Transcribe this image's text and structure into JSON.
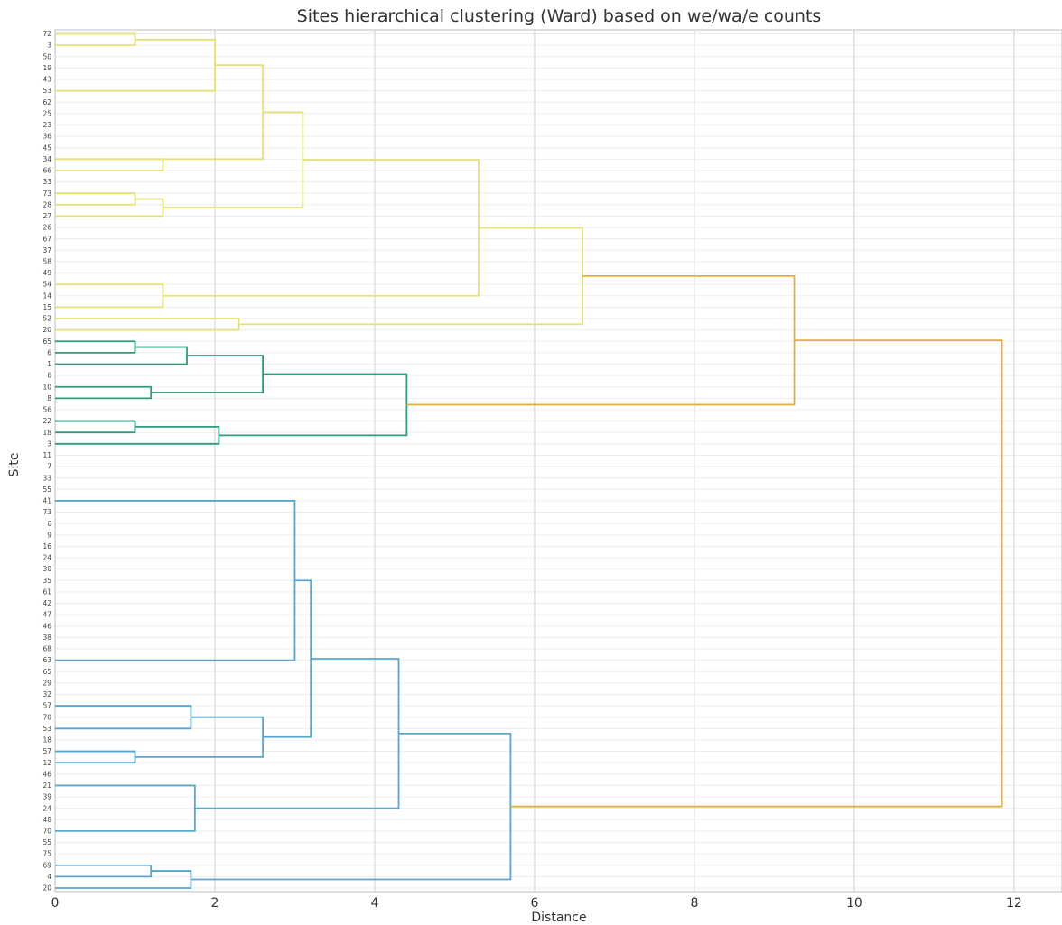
{
  "chart_data": {
    "type": "dendrogram",
    "title": "Sites hierarchical clustering (Ward) based on we/wa/e counts",
    "xlabel": "Distance",
    "ylabel": "Site",
    "xlim": [
      0,
      12.6
    ],
    "xticks": [
      "0",
      "2",
      "4",
      "6",
      "8",
      "10",
      "12"
    ],
    "orientation": "right",
    "grid": true,
    "colors": {
      "cluster_yellow": "#e6e07a",
      "cluster_green": "#2e9c7e",
      "cluster_blue": "#5aa6cf",
      "above_threshold": "#e0b13a",
      "grid": "#cfcfcf"
    },
    "leaves": [
      "72",
      "3",
      "50",
      "19",
      "43",
      "53",
      "62",
      "25",
      "23",
      "36",
      "45",
      "34",
      "66",
      "33",
      "73",
      "28",
      "27",
      "26",
      "67",
      "37",
      "58",
      "49",
      "54",
      "14",
      "15",
      "52",
      "20",
      "65",
      "6",
      "1",
      "6",
      "10",
      "8",
      "56",
      "22",
      "18",
      "3",
      "11",
      "7",
      "33",
      "55",
      "41",
      "73",
      "6",
      "9",
      "16",
      "24",
      "30",
      "35",
      "61",
      "42",
      "47",
      "46",
      "38",
      "68",
      "63",
      "65",
      "29",
      "32",
      "57",
      "70",
      "53",
      "18",
      "57",
      "12",
      "46",
      "21",
      "39",
      "24",
      "48",
      "70",
      "55",
      "75",
      "69",
      "4",
      "20"
    ],
    "links": [
      {
        "left": 0,
        "right": 1,
        "height": 1.0,
        "color": "cluster_yellow"
      },
      {
        "left": "c0",
        "right": 5,
        "height": 2.0,
        "color": "cluster_yellow"
      },
      {
        "left": "c1",
        "right": 11,
        "height": 2.6,
        "color": "cluster_yellow"
      },
      {
        "left": 11,
        "right": 12,
        "height": 1.35,
        "color": "cluster_yellow"
      },
      {
        "left": 14,
        "right": 15,
        "height": 1.0,
        "color": "cluster_yellow"
      },
      {
        "left": "c4",
        "right": 16,
        "height": 1.35,
        "color": "cluster_yellow"
      },
      {
        "left": "c2",
        "right": "c5",
        "height": 3.1,
        "color": "cluster_yellow"
      },
      {
        "left": 22,
        "right": 24,
        "height": 1.35,
        "color": "cluster_yellow"
      },
      {
        "left": "c6",
        "right": "c7",
        "height": 5.3,
        "color": "cluster_yellow"
      },
      {
        "left": 25,
        "right": 26,
        "height": 2.3,
        "color": "cluster_yellow"
      },
      {
        "left": "c8",
        "right": "c9",
        "height": 6.6,
        "color": "cluster_yellow"
      },
      {
        "left": 27,
        "right": 28,
        "height": 1.0,
        "color": "cluster_green"
      },
      {
        "left": "c11",
        "right": 29,
        "height": 1.65,
        "color": "cluster_green"
      },
      {
        "left": 31,
        "right": 32,
        "height": 1.2,
        "color": "cluster_green"
      },
      {
        "left": "c12",
        "right": "c13",
        "height": 2.6,
        "color": "cluster_green"
      },
      {
        "left": 34,
        "right": 35,
        "height": 1.0,
        "color": "cluster_green"
      },
      {
        "left": "c15",
        "right": 36,
        "height": 2.05,
        "color": "cluster_green"
      },
      {
        "left": "c14",
        "right": "c16",
        "height": 4.4,
        "color": "cluster_green"
      },
      {
        "left": "c10",
        "right": "c17",
        "height": 9.25,
        "color": "above_threshold"
      },
      {
        "left": 41,
        "right": 55,
        "height": 3.0,
        "color": "cluster_blue"
      },
      {
        "left": 59,
        "right": 61,
        "height": 1.7,
        "color": "cluster_blue"
      },
      {
        "left": 63,
        "right": 64,
        "height": 1.0,
        "color": "cluster_blue"
      },
      {
        "left": "c20",
        "right": "c21",
        "height": 2.6,
        "color": "cluster_blue"
      },
      {
        "left": "c19",
        "right": "c22",
        "height": 3.2,
        "color": "cluster_blue"
      },
      {
        "left": 66,
        "right": 70,
        "height": 1.75,
        "color": "cluster_blue"
      },
      {
        "left": "c23",
        "right": "c24",
        "height": 4.3,
        "color": "cluster_blue"
      },
      {
        "left": 73,
        "right": 74,
        "height": 1.2,
        "color": "cluster_blue"
      },
      {
        "left": "c26",
        "right": 75,
        "height": 1.7,
        "color": "cluster_blue"
      },
      {
        "left": "c25",
        "right": "c27",
        "height": 5.7,
        "color": "cluster_blue"
      },
      {
        "left": "c18",
        "right": "c28",
        "height": 11.85,
        "color": "above_threshold"
      }
    ]
  }
}
